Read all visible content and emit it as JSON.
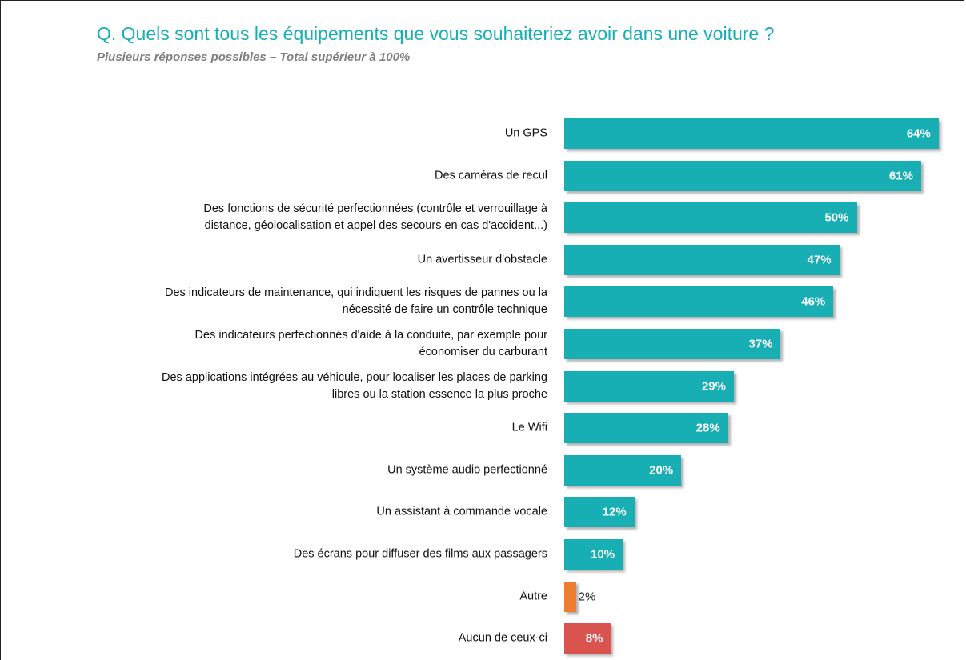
{
  "chart_data": {
    "type": "bar",
    "orientation": "horizontal",
    "title": "Q. Quels sont tous les équipements que vous souhaiteriez avoir dans une voiture ?",
    "subtitle": "Plusieurs réponses possibles – Total supérieur à 100%",
    "categories": [
      "Un GPS",
      "Des caméras de recul",
      "Des fonctions de sécurité perfectionnées (contrôle et verrouillage à\ndistance, géolocalisation et appel des secours en cas d'accident...)",
      "Un avertisseur d'obstacle",
      "Des indicateurs de maintenance, qui indiquent les risques de pannes ou la\nnécessité de faire un contrôle technique",
      "Des indicateurs perfectionnés d'aide à la conduite, par exemple pour\néconomiser du carburant",
      "Des applications intégrées au véhicule, pour localiser les places de parking\nlibres ou la station essence la plus proche",
      "Le Wifi",
      "Un système audio perfectionné",
      "Un assistant à commande vocale",
      "Des écrans pour diffuser des films aux passagers",
      "Autre",
      "Aucun de ceux-ci"
    ],
    "values": [
      64,
      61,
      50,
      47,
      46,
      37,
      29,
      28,
      20,
      12,
      10,
      2,
      8
    ],
    "value_labels": [
      "64%",
      "61%",
      "50%",
      "47%",
      "46%",
      "37%",
      "29%",
      "28%",
      "20%",
      "12%",
      "10%",
      "2%",
      "8%"
    ],
    "colors": [
      "#17aeb4",
      "#17aeb4",
      "#17aeb4",
      "#17aeb4",
      "#17aeb4",
      "#17aeb4",
      "#17aeb4",
      "#17aeb4",
      "#17aeb4",
      "#17aeb4",
      "#17aeb4",
      "#ed7d31",
      "#d9534f"
    ]
  }
}
